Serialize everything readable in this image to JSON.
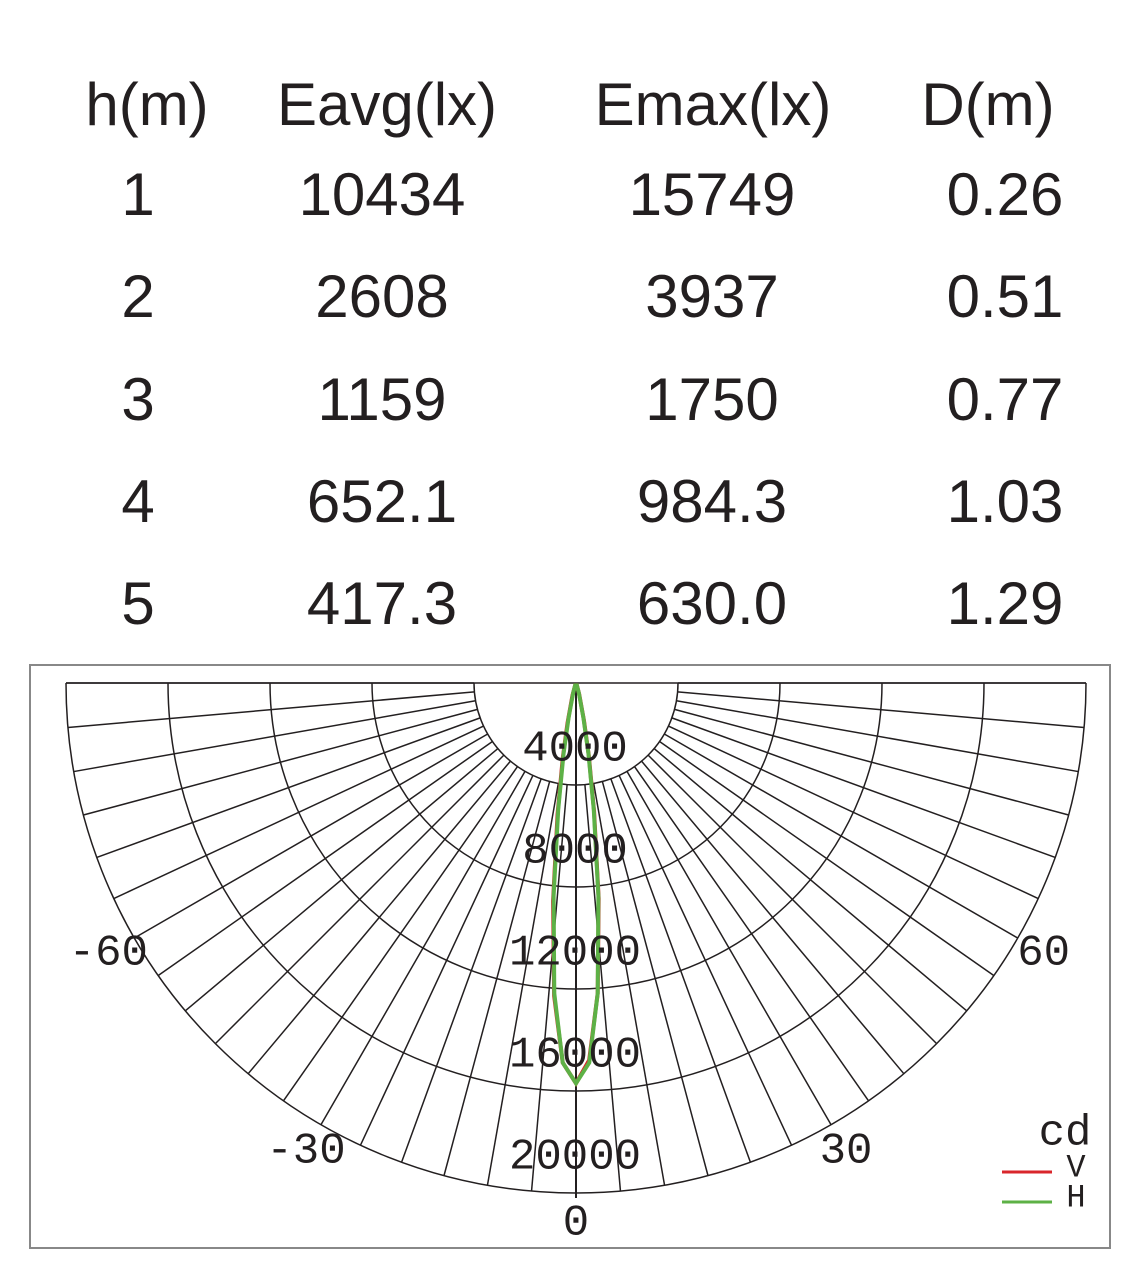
{
  "table": {
    "header": [
      "h(m)",
      "Eavg(lx)",
      "Emax(lx)",
      "D(m)"
    ],
    "rows": [
      [
        "1",
        "10434",
        "15749",
        "0.26"
      ],
      [
        "2",
        "2608",
        "3937",
        "0.51"
      ],
      [
        "3",
        "1159",
        "1750",
        "0.77"
      ],
      [
        "4",
        "652.1",
        "984.3",
        "1.03"
      ],
      [
        "5",
        "417.3",
        "630.0",
        "1.29"
      ]
    ]
  },
  "chart_data": {
    "type": "polar",
    "unit_label": "cd",
    "rlim": [
      0,
      20000
    ],
    "rticks": [
      4000,
      8000,
      12000,
      16000,
      20000
    ],
    "thetalim": [
      -90,
      90
    ],
    "thetaticks": [
      -60,
      -30,
      0,
      30,
      60
    ],
    "theta": [
      -20,
      -16,
      -12,
      -10,
      -8,
      -6,
      -4,
      -2,
      0,
      2,
      4,
      6,
      8,
      10,
      12,
      16,
      20
    ],
    "series": [
      {
        "name": "V",
        "color": "#d9262b",
        "values": [
          100,
          500,
          1600,
          3000,
          5200,
          8600,
          12300,
          14900,
          15700,
          14800,
          12200,
          8500,
          5100,
          2900,
          1500,
          450,
          100
        ]
      },
      {
        "name": "H",
        "color": "#5db146",
        "values": [
          100,
          400,
          1400,
          2800,
          5000,
          8400,
          12200,
          14900,
          15700,
          14900,
          12200,
          8400,
          5000,
          2800,
          1400,
          400,
          100
        ]
      }
    ]
  }
}
